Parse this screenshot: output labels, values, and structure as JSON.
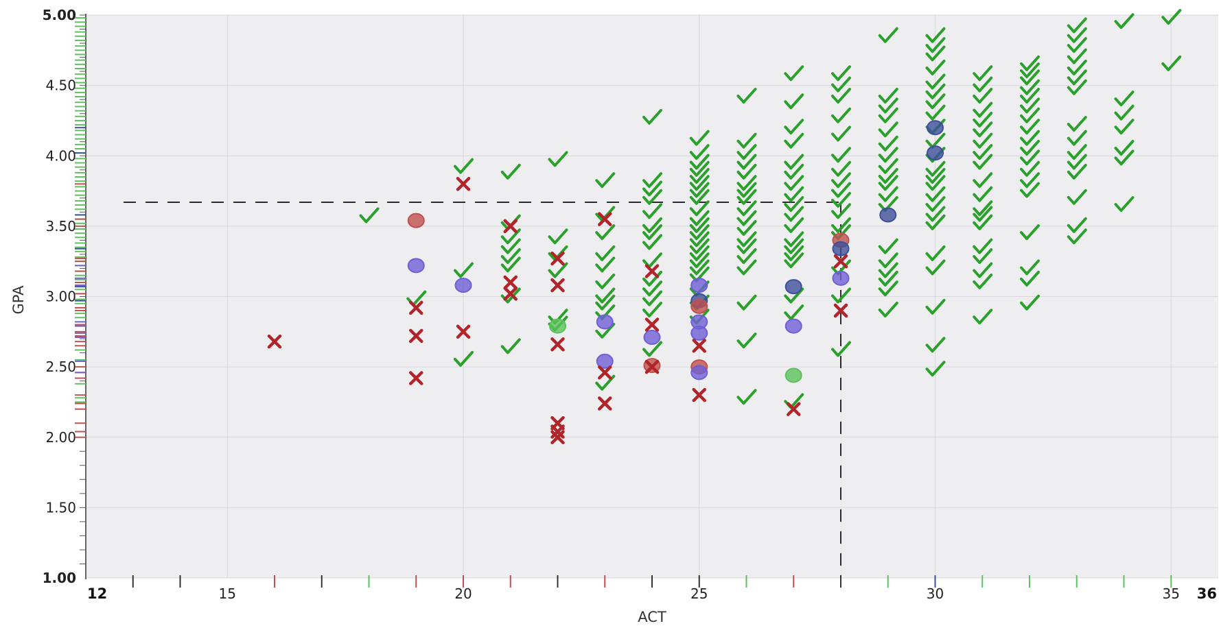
{
  "chart_data": {
    "type": "scatter",
    "title": "",
    "xlabel": "ACT",
    "ylabel": "GPA",
    "xlim": [
      12,
      36
    ],
    "ylim": [
      1.0,
      5.0
    ],
    "x_ticks": [
      "15",
      "20",
      "25",
      "30",
      "35"
    ],
    "x_end_labels": [
      "12",
      "36"
    ],
    "y_ticks": [
      "1.00",
      "1.50",
      "2.00",
      "2.50",
      "3.00",
      "3.50",
      "4.00",
      "4.50",
      "5.00"
    ],
    "grid": true,
    "reference_lines": {
      "gpa": 3.67,
      "act": 28
    },
    "colors": {
      "accepted": "#2ca02c",
      "rejected": "#b0242a",
      "waitlisted": "#6f5fd6",
      "circle_red": "#c0504d",
      "circle_green": "#5cc25c",
      "circle_navy": "#3d4f9a",
      "plot_background": "#eeeef1",
      "grid": "#d7d7dc",
      "reference": "#2a2a2a"
    },
    "series": [
      {
        "marker": "check-icon",
        "points": [
          [
            18,
            3.57
          ],
          [
            19,
            2.98
          ],
          [
            20,
            3.92
          ],
          [
            20,
            3.18
          ],
          [
            20,
            2.55
          ],
          [
            21,
            3.88
          ],
          [
            21,
            3.52
          ],
          [
            21,
            3.42
          ],
          [
            21,
            3.35
          ],
          [
            21,
            3.28
          ],
          [
            21,
            3.22
          ],
          [
            21,
            3.0
          ],
          [
            21,
            2.64
          ],
          [
            22,
            3.97
          ],
          [
            22,
            3.42
          ],
          [
            22,
            3.3
          ],
          [
            22,
            3.18
          ],
          [
            22,
            2.85
          ],
          [
            22,
            2.8
          ],
          [
            23,
            3.82
          ],
          [
            23,
            3.58
          ],
          [
            23,
            3.45
          ],
          [
            23,
            3.3
          ],
          [
            23,
            3.22
          ],
          [
            23,
            3.1
          ],
          [
            23,
            3.0
          ],
          [
            23,
            2.95
          ],
          [
            23,
            2.88
          ],
          [
            23,
            2.75
          ],
          [
            23,
            2.38
          ],
          [
            24,
            4.27
          ],
          [
            24,
            3.82
          ],
          [
            24,
            3.76
          ],
          [
            24,
            3.7
          ],
          [
            24,
            3.6
          ],
          [
            24,
            3.5
          ],
          [
            24,
            3.45
          ],
          [
            24,
            3.38
          ],
          [
            24,
            3.25
          ],
          [
            24,
            3.12
          ],
          [
            24,
            3.05
          ],
          [
            24,
            2.98
          ],
          [
            24,
            2.9
          ],
          [
            24,
            2.62
          ],
          [
            25,
            4.12
          ],
          [
            25,
            4.02
          ],
          [
            25,
            3.95
          ],
          [
            25,
            3.9
          ],
          [
            25,
            3.85
          ],
          [
            25,
            3.8
          ],
          [
            25,
            3.75
          ],
          [
            25,
            3.7
          ],
          [
            25,
            3.62
          ],
          [
            25,
            3.55
          ],
          [
            25,
            3.5
          ],
          [
            25,
            3.45
          ],
          [
            25,
            3.4
          ],
          [
            25,
            3.35
          ],
          [
            25,
            3.3
          ],
          [
            25,
            3.25
          ],
          [
            25,
            3.2
          ],
          [
            25,
            3.15
          ],
          [
            25,
            3.05
          ],
          [
            25,
            2.95
          ],
          [
            25,
            2.85
          ],
          [
            26,
            4.42
          ],
          [
            26,
            4.1
          ],
          [
            26,
            4.02
          ],
          [
            26,
            3.95
          ],
          [
            26,
            3.88
          ],
          [
            26,
            3.8
          ],
          [
            26,
            3.75
          ],
          [
            26,
            3.7
          ],
          [
            26,
            3.62
          ],
          [
            26,
            3.55
          ],
          [
            26,
            3.48
          ],
          [
            26,
            3.4
          ],
          [
            26,
            3.35
          ],
          [
            26,
            3.28
          ],
          [
            26,
            3.2
          ],
          [
            26,
            2.95
          ],
          [
            26,
            2.68
          ],
          [
            26,
            2.28
          ],
          [
            27,
            4.58
          ],
          [
            27,
            4.38
          ],
          [
            27,
            4.2
          ],
          [
            27,
            4.1
          ],
          [
            27,
            3.95
          ],
          [
            27,
            3.88
          ],
          [
            27,
            3.8
          ],
          [
            27,
            3.72
          ],
          [
            27,
            3.65
          ],
          [
            27,
            3.58
          ],
          [
            27,
            3.5
          ],
          [
            27,
            3.4
          ],
          [
            27,
            3.35
          ],
          [
            27,
            3.3
          ],
          [
            27,
            3.25
          ],
          [
            27,
            3.0
          ],
          [
            27,
            2.88
          ],
          [
            27,
            2.25
          ],
          [
            28,
            4.58
          ],
          [
            28,
            4.5
          ],
          [
            28,
            4.42
          ],
          [
            28,
            4.28
          ],
          [
            28,
            4.15
          ],
          [
            28,
            4.0
          ],
          [
            28,
            3.9
          ],
          [
            28,
            3.82
          ],
          [
            28,
            3.75
          ],
          [
            28,
            3.68
          ],
          [
            28,
            3.6
          ],
          [
            28,
            3.5
          ],
          [
            28,
            3.45
          ],
          [
            28,
            3.2
          ],
          [
            28,
            3.0
          ],
          [
            28,
            2.62
          ],
          [
            29,
            4.85
          ],
          [
            29,
            4.42
          ],
          [
            29,
            4.35
          ],
          [
            29,
            4.28
          ],
          [
            29,
            4.18
          ],
          [
            29,
            4.08
          ],
          [
            29,
            4.0
          ],
          [
            29,
            3.92
          ],
          [
            29,
            3.85
          ],
          [
            29,
            3.8
          ],
          [
            29,
            3.72
          ],
          [
            29,
            3.65
          ],
          [
            29,
            3.35
          ],
          [
            29,
            3.25
          ],
          [
            29,
            3.18
          ],
          [
            29,
            3.12
          ],
          [
            29,
            3.05
          ],
          [
            29,
            2.9
          ],
          [
            30,
            4.85
          ],
          [
            30,
            4.78
          ],
          [
            30,
            4.72
          ],
          [
            30,
            4.62
          ],
          [
            30,
            4.52
          ],
          [
            30,
            4.45
          ],
          [
            30,
            4.38
          ],
          [
            30,
            4.3
          ],
          [
            30,
            4.2
          ],
          [
            30,
            4.1
          ],
          [
            30,
            4.0
          ],
          [
            30,
            3.9
          ],
          [
            30,
            3.85
          ],
          [
            30,
            3.8
          ],
          [
            30,
            3.72
          ],
          [
            30,
            3.65
          ],
          [
            30,
            3.58
          ],
          [
            30,
            3.52
          ],
          [
            30,
            3.3
          ],
          [
            30,
            3.2
          ],
          [
            30,
            2.92
          ],
          [
            30,
            2.65
          ],
          [
            30,
            2.48
          ],
          [
            31,
            4.58
          ],
          [
            31,
            4.5
          ],
          [
            31,
            4.42
          ],
          [
            31,
            4.32
          ],
          [
            31,
            4.25
          ],
          [
            31,
            4.18
          ],
          [
            31,
            4.1
          ],
          [
            31,
            4.02
          ],
          [
            31,
            3.95
          ],
          [
            31,
            3.82
          ],
          [
            31,
            3.72
          ],
          [
            31,
            3.62
          ],
          [
            31,
            3.58
          ],
          [
            31,
            3.52
          ],
          [
            31,
            3.35
          ],
          [
            31,
            3.28
          ],
          [
            31,
            3.18
          ],
          [
            31,
            3.1
          ],
          [
            31,
            2.85
          ],
          [
            32,
            4.65
          ],
          [
            32,
            4.6
          ],
          [
            32,
            4.55
          ],
          [
            32,
            4.48
          ],
          [
            32,
            4.42
          ],
          [
            32,
            4.35
          ],
          [
            32,
            4.28
          ],
          [
            32,
            4.2
          ],
          [
            32,
            4.12
          ],
          [
            32,
            4.05
          ],
          [
            32,
            3.98
          ],
          [
            32,
            3.9
          ],
          [
            32,
            3.82
          ],
          [
            32,
            3.75
          ],
          [
            32,
            3.45
          ],
          [
            32,
            3.2
          ],
          [
            32,
            3.12
          ],
          [
            32,
            2.95
          ],
          [
            33,
            4.92
          ],
          [
            33,
            4.85
          ],
          [
            33,
            4.78
          ],
          [
            33,
            4.7
          ],
          [
            33,
            4.62
          ],
          [
            33,
            4.55
          ],
          [
            33,
            4.48
          ],
          [
            33,
            4.22
          ],
          [
            33,
            4.12
          ],
          [
            33,
            4.02
          ],
          [
            33,
            3.95
          ],
          [
            33,
            3.88
          ],
          [
            33,
            3.7
          ],
          [
            33,
            3.5
          ],
          [
            33,
            3.42
          ],
          [
            34,
            4.95
          ],
          [
            34,
            4.4
          ],
          [
            34,
            4.3
          ],
          [
            34,
            4.2
          ],
          [
            34,
            4.05
          ],
          [
            34,
            3.98
          ],
          [
            34,
            3.65
          ],
          [
            35,
            4.98
          ],
          [
            35,
            4.65
          ]
        ]
      },
      {
        "marker": "cross-icon",
        "points": [
          [
            16,
            2.68
          ],
          [
            19,
            2.92
          ],
          [
            19,
            2.72
          ],
          [
            19,
            2.42
          ],
          [
            20,
            3.8
          ],
          [
            20,
            2.75
          ],
          [
            21,
            3.5
          ],
          [
            21,
            3.1
          ],
          [
            21,
            3.02
          ],
          [
            22,
            3.27
          ],
          [
            22,
            3.08
          ],
          [
            22,
            2.66
          ],
          [
            22,
            2.1
          ],
          [
            22,
            2.04
          ],
          [
            22,
            2.0
          ],
          [
            23,
            3.55
          ],
          [
            23,
            2.46
          ],
          [
            23,
            2.24
          ],
          [
            24,
            3.18
          ],
          [
            24,
            2.8
          ],
          [
            24,
            2.5
          ],
          [
            25,
            2.65
          ],
          [
            25,
            2.3
          ],
          [
            27,
            2.2
          ],
          [
            28,
            3.25
          ],
          [
            28,
            2.9
          ]
        ]
      },
      {
        "marker": "circle",
        "points": [
          [
            19,
            3.54,
            "red"
          ],
          [
            19,
            3.22,
            "purple"
          ],
          [
            20,
            3.08,
            "purple"
          ],
          [
            22,
            2.79,
            "green"
          ],
          [
            23,
            2.82,
            "purple"
          ],
          [
            23,
            2.54,
            "purple"
          ],
          [
            24,
            2.71,
            "purple"
          ],
          [
            24,
            2.51,
            "red"
          ],
          [
            25,
            3.08,
            "purple"
          ],
          [
            25,
            2.97,
            "navy"
          ],
          [
            25,
            2.93,
            "red"
          ],
          [
            25,
            2.82,
            "purple"
          ],
          [
            25,
            2.74,
            "purple"
          ],
          [
            25,
            2.5,
            "red"
          ],
          [
            25,
            2.46,
            "purple"
          ],
          [
            27,
            3.07,
            "navy"
          ],
          [
            27,
            2.79,
            "purple"
          ],
          [
            27,
            2.44,
            "green"
          ],
          [
            28,
            3.4,
            "red"
          ],
          [
            28,
            3.34,
            "navy"
          ],
          [
            28,
            3.13,
            "purple"
          ],
          [
            29,
            3.58,
            "navy"
          ],
          [
            30,
            4.2,
            "navy"
          ],
          [
            30,
            4.02,
            "navy"
          ]
        ]
      }
    ],
    "x_rug": [
      [
        13,
        "black"
      ],
      [
        14,
        "black"
      ],
      [
        16,
        "red"
      ],
      [
        17,
        "black"
      ],
      [
        18,
        "green"
      ],
      [
        19,
        "red"
      ],
      [
        20,
        "red"
      ],
      [
        21,
        "red"
      ],
      [
        22,
        "black"
      ],
      [
        23,
        "red"
      ],
      [
        24,
        "black"
      ],
      [
        25,
        "black"
      ],
      [
        26,
        "green"
      ],
      [
        27,
        "red"
      ],
      [
        28,
        "black"
      ],
      [
        29,
        "green"
      ],
      [
        30,
        "navy"
      ],
      [
        31,
        "green"
      ],
      [
        32,
        "green"
      ],
      [
        33,
        "green"
      ],
      [
        34,
        "green"
      ],
      [
        35,
        "green"
      ]
    ],
    "y_rug": {
      "green": [
        4.98,
        4.95,
        4.92,
        4.88,
        4.85,
        4.82,
        4.78,
        4.75,
        4.72,
        4.68,
        4.65,
        4.62,
        4.58,
        4.55,
        4.52,
        4.48,
        4.45,
        4.42,
        4.38,
        4.35,
        4.32,
        4.28,
        4.25,
        4.22,
        4.18,
        4.15,
        4.12,
        4.08,
        4.05,
        4.02,
        3.98,
        3.95,
        3.92,
        3.88,
        3.85,
        3.82,
        3.78,
        3.75,
        3.72,
        3.68,
        3.65,
        3.62,
        3.58,
        3.55,
        3.52,
        3.48,
        3.45,
        3.42,
        3.38,
        3.35,
        3.32,
        3.28,
        3.25,
        3.22,
        3.18,
        3.15,
        3.12,
        3.08,
        3.05,
        3.02,
        2.98,
        2.95,
        2.92,
        2.88,
        2.85,
        2.62,
        2.55,
        2.38,
        2.28,
        2.25
      ],
      "red": [
        3.8,
        3.55,
        3.5,
        3.27,
        3.25,
        3.18,
        3.1,
        3.08,
        3.02,
        2.92,
        2.9,
        2.8,
        2.75,
        2.72,
        2.68,
        2.65,
        2.5,
        2.46,
        2.42,
        2.3,
        2.24,
        2.2,
        2.1,
        2.04,
        2.0
      ],
      "navy": [
        4.2,
        4.02,
        3.58,
        3.34,
        3.07,
        2.97
      ],
      "purple": [
        3.22,
        3.13,
        3.08,
        2.82,
        2.79,
        2.74,
        2.71,
        2.54,
        2.46
      ]
    }
  }
}
